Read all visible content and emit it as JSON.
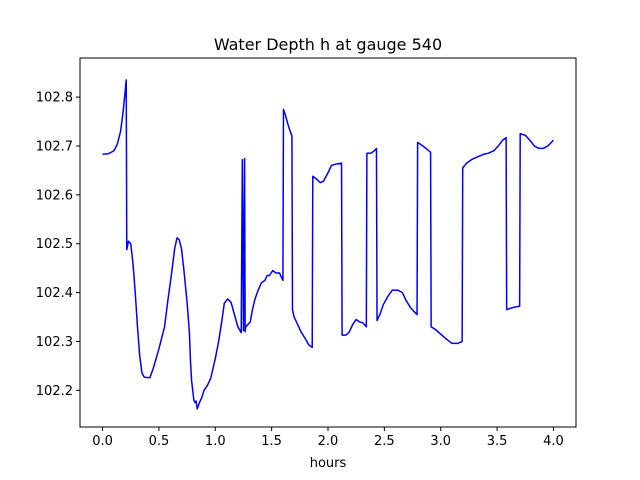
{
  "chart_data": {
    "type": "line",
    "title": "Water Depth h at gauge 540",
    "xlabel": "hours",
    "ylabel": "",
    "xlim": [
      -0.2,
      4.2
    ],
    "ylim": [
      102.125,
      102.88
    ],
    "xticks": [
      "0.0",
      "0.5",
      "1.0",
      "1.5",
      "2.0",
      "2.5",
      "3.0",
      "3.5",
      "4.0"
    ],
    "yticks": [
      "102.2",
      "102.3",
      "102.4",
      "102.5",
      "102.6",
      "102.7",
      "102.8"
    ],
    "grid": false,
    "legend": "none",
    "series": [
      {
        "color": "#0000ff",
        "points": [
          [
            0.0,
            102.683
          ],
          [
            0.05,
            102.684
          ],
          [
            0.1,
            102.69
          ],
          [
            0.13,
            102.703
          ],
          [
            0.16,
            102.73
          ],
          [
            0.18,
            102.765
          ],
          [
            0.2,
            102.81
          ],
          [
            0.21,
            102.835
          ],
          [
            0.215,
            102.488
          ],
          [
            0.23,
            102.505
          ],
          [
            0.25,
            102.5
          ],
          [
            0.27,
            102.46
          ],
          [
            0.29,
            102.4
          ],
          [
            0.31,
            102.33
          ],
          [
            0.33,
            102.27
          ],
          [
            0.35,
            102.235
          ],
          [
            0.37,
            102.227
          ],
          [
            0.4,
            102.226
          ],
          [
            0.42,
            102.226
          ],
          [
            0.45,
            102.245
          ],
          [
            0.5,
            102.285
          ],
          [
            0.55,
            102.33
          ],
          [
            0.58,
            102.385
          ],
          [
            0.61,
            102.435
          ],
          [
            0.64,
            102.49
          ],
          [
            0.66,
            102.512
          ],
          [
            0.68,
            102.508
          ],
          [
            0.7,
            102.49
          ],
          [
            0.72,
            102.45
          ],
          [
            0.75,
            102.38
          ],
          [
            0.77,
            102.32
          ],
          [
            0.78,
            102.26
          ],
          [
            0.79,
            102.22
          ],
          [
            0.81,
            102.18
          ],
          [
            0.82,
            102.175
          ],
          [
            0.83,
            102.178
          ],
          [
            0.84,
            102.162
          ],
          [
            0.86,
            102.175
          ],
          [
            0.88,
            102.185
          ],
          [
            0.9,
            102.2
          ],
          [
            0.93,
            102.21
          ],
          [
            0.96,
            102.225
          ],
          [
            1.0,
            102.265
          ],
          [
            1.03,
            102.3
          ],
          [
            1.06,
            102.345
          ],
          [
            1.08,
            102.378
          ],
          [
            1.11,
            102.387
          ],
          [
            1.14,
            102.38
          ],
          [
            1.17,
            102.355
          ],
          [
            1.2,
            102.33
          ],
          [
            1.23,
            102.318
          ],
          [
            1.24,
            102.672
          ],
          [
            1.25,
            102.322
          ],
          [
            1.26,
            102.674
          ],
          [
            1.265,
            102.32
          ],
          [
            1.27,
            102.33
          ],
          [
            1.29,
            102.335
          ],
          [
            1.31,
            102.34
          ],
          [
            1.33,
            102.365
          ],
          [
            1.35,
            102.385
          ],
          [
            1.38,
            102.405
          ],
          [
            1.41,
            102.42
          ],
          [
            1.44,
            102.425
          ],
          [
            1.46,
            102.435
          ],
          [
            1.48,
            102.435
          ],
          [
            1.51,
            102.445
          ],
          [
            1.54,
            102.44
          ],
          [
            1.57,
            102.44
          ],
          [
            1.6,
            102.425
          ],
          [
            1.605,
            102.775
          ],
          [
            1.62,
            102.765
          ],
          [
            1.65,
            102.74
          ],
          [
            1.68,
            102.72
          ],
          [
            1.685,
            102.365
          ],
          [
            1.7,
            102.35
          ],
          [
            1.73,
            102.335
          ],
          [
            1.76,
            102.32
          ],
          [
            1.8,
            102.305
          ],
          [
            1.83,
            102.293
          ],
          [
            1.86,
            102.288
          ],
          [
            1.865,
            102.638
          ],
          [
            1.9,
            102.632
          ],
          [
            1.93,
            102.625
          ],
          [
            1.96,
            102.628
          ],
          [
            2.0,
            102.645
          ],
          [
            2.03,
            102.66
          ],
          [
            2.07,
            102.663
          ],
          [
            2.12,
            102.665
          ],
          [
            2.125,
            102.313
          ],
          [
            2.16,
            102.313
          ],
          [
            2.19,
            102.32
          ],
          [
            2.22,
            102.335
          ],
          [
            2.25,
            102.345
          ],
          [
            2.28,
            102.34
          ],
          [
            2.31,
            102.338
          ],
          [
            2.34,
            102.33
          ],
          [
            2.345,
            102.685
          ],
          [
            2.38,
            102.685
          ],
          [
            2.41,
            102.69
          ],
          [
            2.43,
            102.695
          ],
          [
            2.435,
            102.343
          ],
          [
            2.46,
            102.355
          ],
          [
            2.49,
            102.375
          ],
          [
            2.53,
            102.392
          ],
          [
            2.57,
            102.405
          ],
          [
            2.62,
            102.405
          ],
          [
            2.66,
            102.4
          ],
          [
            2.69,
            102.385
          ],
          [
            2.73,
            102.37
          ],
          [
            2.76,
            102.362
          ],
          [
            2.79,
            102.355
          ],
          [
            2.795,
            102.707
          ],
          [
            2.83,
            102.702
          ],
          [
            2.87,
            102.695
          ],
          [
            2.91,
            102.687
          ],
          [
            2.915,
            102.33
          ],
          [
            2.95,
            102.325
          ],
          [
            3.0,
            102.315
          ],
          [
            3.05,
            102.305
          ],
          [
            3.1,
            102.296
          ],
          [
            3.15,
            102.296
          ],
          [
            3.19,
            102.3
          ],
          [
            3.195,
            102.655
          ],
          [
            3.23,
            102.665
          ],
          [
            3.28,
            102.673
          ],
          [
            3.33,
            102.678
          ],
          [
            3.38,
            102.683
          ],
          [
            3.42,
            102.685
          ],
          [
            3.47,
            102.69
          ],
          [
            3.51,
            102.7
          ],
          [
            3.55,
            102.712
          ],
          [
            3.58,
            102.717
          ],
          [
            3.585,
            102.365
          ],
          [
            3.62,
            102.368
          ],
          [
            3.65,
            102.37
          ],
          [
            3.7,
            102.372
          ],
          [
            3.705,
            102.725
          ],
          [
            3.75,
            102.722
          ],
          [
            3.79,
            102.712
          ],
          [
            3.83,
            102.7
          ],
          [
            3.87,
            102.695
          ],
          [
            3.91,
            102.695
          ],
          [
            3.95,
            102.7
          ],
          [
            4.0,
            102.712
          ]
        ]
      }
    ]
  }
}
